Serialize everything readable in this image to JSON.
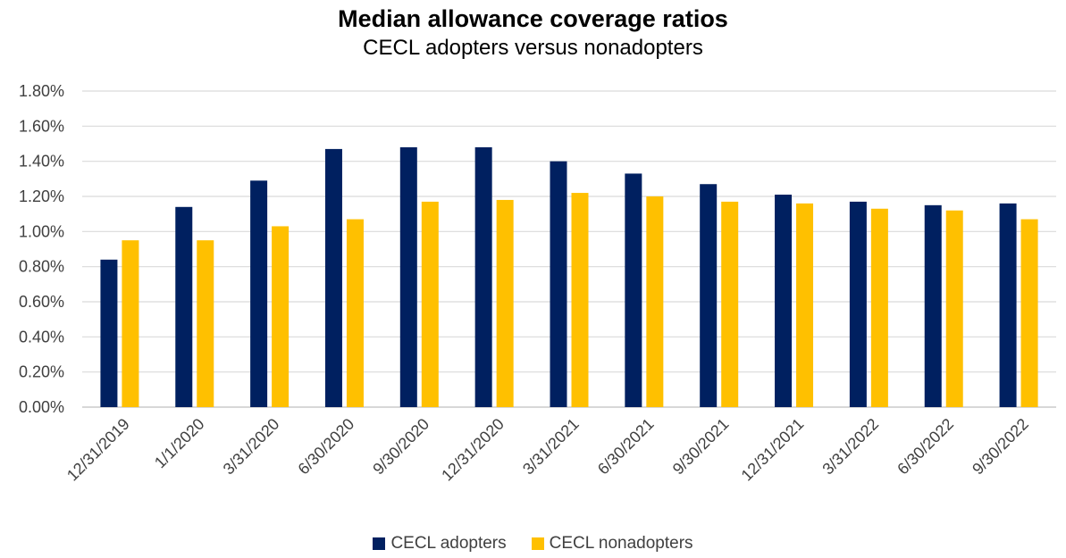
{
  "chart_data": {
    "type": "bar",
    "title": "Median allowance coverage ratios",
    "subtitle": "CECL adopters versus nonadopters",
    "categories": [
      "12/31/2019",
      "1/1/2020",
      "3/31/2020",
      "6/30/2020",
      "9/30/2020",
      "12/31/2020",
      "3/31/2021",
      "6/30/2021",
      "9/30/2021",
      "12/31/2021",
      "3/31/2022",
      "6/30/2022",
      "9/30/2022"
    ],
    "series": [
      {
        "name": "CECL adopters",
        "color": "#002060",
        "values": [
          0.84,
          1.14,
          1.29,
          1.47,
          1.48,
          1.48,
          1.4,
          1.33,
          1.27,
          1.21,
          1.17,
          1.15,
          1.16
        ]
      },
      {
        "name": "CECL nonadopters",
        "color": "#FFC000",
        "values": [
          0.95,
          0.95,
          1.03,
          1.07,
          1.17,
          1.18,
          1.22,
          1.2,
          1.17,
          1.16,
          1.13,
          1.12,
          1.07
        ]
      }
    ],
    "y_ticks": [
      "0.00%",
      "0.20%",
      "0.40%",
      "0.60%",
      "0.80%",
      "1.00%",
      "1.20%",
      "1.40%",
      "1.60%",
      "1.80%"
    ],
    "ylim": [
      0,
      1.8
    ],
    "grid": true,
    "legend_position": "bottom"
  }
}
